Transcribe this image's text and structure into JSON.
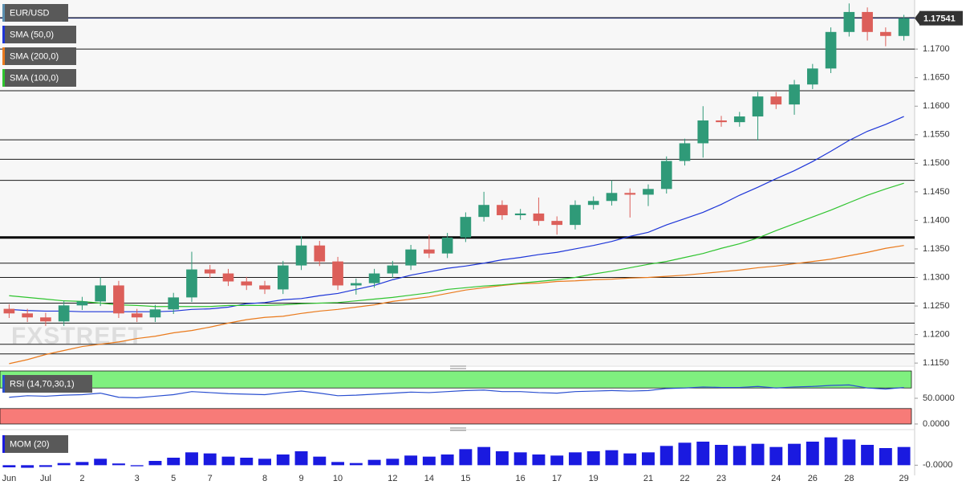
{
  "chart_data": {
    "type": "candlestick",
    "title": "EUR/USD",
    "watermark": "FXSTREET",
    "categories": [
      "Jun",
      null,
      "Jul",
      null,
      "2",
      null,
      null,
      "3",
      null,
      "5",
      null,
      "7",
      null,
      null,
      "8",
      null,
      "9",
      null,
      "10",
      null,
      null,
      "12",
      null,
      "14",
      null,
      "15",
      null,
      null,
      "16",
      null,
      "17",
      null,
      "19",
      null,
      null,
      "21",
      null,
      "22",
      null,
      "23",
      null,
      null,
      "24",
      null,
      "26",
      null,
      "28",
      null,
      null,
      "29"
    ],
    "open": [
      1.1245,
      1.1237,
      1.123,
      1.1223,
      1.1251,
      1.1258,
      1.1286,
      1.1237,
      1.123,
      1.1244,
      1.1265,
      1.1314,
      1.1307,
      1.1293,
      1.1286,
      1.1279,
      1.1321,
      1.1356,
      1.1328,
      1.1286,
      1.129,
      1.1307,
      1.1321,
      1.1349,
      1.1342,
      1.137,
      1.1406,
      1.1427,
      1.1409,
      1.1412,
      1.1399,
      1.1392,
      1.1427,
      1.1434,
      1.1448,
      1.1445,
      1.1455,
      1.1504,
      1.1535,
      1.1575,
      1.1572,
      1.1582,
      1.1617,
      1.1603,
      1.1638,
      1.1666,
      1.173,
      1.1765,
      1.173,
      1.1723
    ],
    "high": [
      1.1253,
      1.1245,
      1.1238,
      1.1259,
      1.1266,
      1.13,
      1.1294,
      1.1245,
      1.1252,
      1.1273,
      1.1345,
      1.1322,
      1.1315,
      1.1301,
      1.1294,
      1.1329,
      1.1372,
      1.1364,
      1.1336,
      1.1298,
      1.1315,
      1.1329,
      1.1357,
      1.1375,
      1.1378,
      1.1414,
      1.145,
      1.1435,
      1.142,
      1.144,
      1.1407,
      1.1435,
      1.1442,
      1.147,
      1.1456,
      1.1463,
      1.1512,
      1.1543,
      1.16,
      1.1583,
      1.159,
      1.1625,
      1.1625,
      1.1646,
      1.1674,
      1.1738,
      1.178,
      1.1773,
      1.1738,
      1.176
    ],
    "low": [
      1.1229,
      1.1222,
      1.1215,
      1.1215,
      1.1243,
      1.125,
      1.1229,
      1.1222,
      1.1222,
      1.1236,
      1.1257,
      1.1299,
      1.1285,
      1.1278,
      1.1271,
      1.1271,
      1.1313,
      1.132,
      1.1278,
      1.127,
      1.1282,
      1.1299,
      1.1313,
      1.1334,
      1.1334,
      1.1362,
      1.1398,
      1.1401,
      1.1401,
      1.1391,
      1.1375,
      1.1384,
      1.1419,
      1.1426,
      1.1405,
      1.1425,
      1.1447,
      1.1496,
      1.151,
      1.1564,
      1.1564,
      1.154,
      1.1595,
      1.1585,
      1.163,
      1.1658,
      1.1722,
      1.1715,
      1.1705,
      1.1715
    ],
    "close": [
      1.1237,
      1.123,
      1.1223,
      1.1251,
      1.1258,
      1.1286,
      1.1237,
      1.123,
      1.1244,
      1.1265,
      1.1314,
      1.1307,
      1.1293,
      1.1286,
      1.1279,
      1.1321,
      1.1356,
      1.1328,
      1.1286,
      1.129,
      1.1307,
      1.1321,
      1.1349,
      1.1342,
      1.137,
      1.1406,
      1.1427,
      1.1409,
      1.1412,
      1.1399,
      1.1392,
      1.1427,
      1.1434,
      1.1448,
      1.1445,
      1.1455,
      1.1504,
      1.1535,
      1.1575,
      1.1572,
      1.1582,
      1.1617,
      1.1603,
      1.1638,
      1.1666,
      1.173,
      1.1765,
      1.173,
      1.1723,
      1.17541
    ],
    "up_color": "#2f9a78",
    "down_color": "#dc5f5a",
    "title_color": "#5a8fb0",
    "series": [
      {
        "name": "SMA (50,0)",
        "color": "#1d35d8",
        "values": [
          1.1244,
          1.1242,
          1.1241,
          1.1241,
          1.124,
          1.124,
          1.124,
          1.124,
          1.124,
          1.1241,
          1.1244,
          1.1245,
          1.1248,
          1.1254,
          1.1256,
          1.1261,
          1.1263,
          1.1268,
          1.1272,
          1.1279,
          1.1286,
          1.1296,
          1.1304,
          1.131,
          1.1316,
          1.132,
          1.1325,
          1.1331,
          1.1335,
          1.134,
          1.1344,
          1.135,
          1.1356,
          1.1363,
          1.1372,
          1.1379,
          1.1392,
          1.1403,
          1.1414,
          1.1428,
          1.1444,
          1.1458,
          1.1473,
          1.1487,
          1.1503,
          1.1521,
          1.154,
          1.1556,
          1.1568,
          1.1582
        ]
      },
      {
        "name": "SMA (200,0)",
        "color": "#ea7a1c",
        "values": [
          1.1149,
          1.1156,
          1.1165,
          1.1172,
          1.1179,
          1.1183,
          1.1187,
          1.1193,
          1.1197,
          1.1203,
          1.1207,
          1.1213,
          1.122,
          1.1226,
          1.123,
          1.1232,
          1.1237,
          1.1241,
          1.1244,
          1.1248,
          1.1252,
          1.1258,
          1.1262,
          1.1266,
          1.1272,
          1.1278,
          1.1282,
          1.1286,
          1.1289,
          1.129,
          1.1293,
          1.1294,
          1.1296,
          1.1297,
          1.1299,
          1.13,
          1.1302,
          1.1304,
          1.1307,
          1.131,
          1.1313,
          1.1317,
          1.132,
          1.1324,
          1.1328,
          1.1332,
          1.1338,
          1.1344,
          1.1351,
          1.1356
        ]
      },
      {
        "name": "SMA (100,0)",
        "color": "#2fc42f",
        "values": [
          1.1268,
          1.1265,
          1.1262,
          1.1259,
          1.1258,
          1.1255,
          1.1252,
          1.1251,
          1.1249,
          1.1249,
          1.1249,
          1.1249,
          1.1251,
          1.1251,
          1.1251,
          1.1252,
          1.1254,
          1.1255,
          1.1256,
          1.1259,
          1.1262,
          1.1265,
          1.1269,
          1.1273,
          1.1279,
          1.1282,
          1.1285,
          1.1287,
          1.129,
          1.1293,
          1.1296,
          1.13,
          1.1306,
          1.1311,
          1.1317,
          1.1323,
          1.1328,
          1.1335,
          1.1342,
          1.1351,
          1.1359,
          1.1369,
          1.1382,
          1.1394,
          1.1406,
          1.1418,
          1.1431,
          1.1444,
          1.1455,
          1.1465
        ]
      }
    ],
    "ylim": [
      1.1146,
      1.1786
    ],
    "yticks": [
      {
        "value": 1.17,
        "label": "1.1700"
      },
      {
        "value": 1.165,
        "label": "1.1650"
      },
      {
        "value": 1.16,
        "label": "1.1600"
      },
      {
        "value": 1.155,
        "label": "1.1550"
      },
      {
        "value": 1.15,
        "label": "1.1500"
      },
      {
        "value": 1.145,
        "label": "1.1450"
      },
      {
        "value": 1.14,
        "label": "1.1400"
      },
      {
        "value": 1.135,
        "label": "1.1350"
      },
      {
        "value": 1.13,
        "label": "1.1300"
      },
      {
        "value": 1.125,
        "label": "1.1250"
      },
      {
        "value": 1.12,
        "label": "1.1200"
      },
      {
        "value": 1.115,
        "label": "1.1150"
      }
    ],
    "hlines": [
      1.1755,
      1.17,
      1.1627,
      1.1541,
      1.1507,
      1.147,
      1.1325,
      1.13,
      1.1255,
      1.122,
      1.1183,
      1.1166
    ],
    "bold_hlines": [
      1.137
    ],
    "panels": [
      {
        "type": "line",
        "name": "RSI (14,70,30,1)",
        "color": "#2a4fd0",
        "values": [
          52,
          55,
          54,
          56,
          57,
          60,
          52,
          51,
          54,
          57,
          63,
          61,
          59,
          58,
          57,
          61,
          64,
          60,
          55,
          56,
          58,
          60,
          62,
          61,
          63,
          65,
          66,
          63,
          63,
          61,
          60,
          63,
          64,
          65,
          64,
          65,
          69,
          70,
          72,
          71,
          71,
          73,
          70,
          72,
          73,
          75,
          76,
          70,
          68,
          71
        ],
        "levels": [
          70,
          30
        ],
        "upper_color": "#7ff07f",
        "lower_color": "#f77b78",
        "ylim": [
          0,
          100
        ],
        "yticks": [
          {
            "value": 50,
            "label": "50.0000"
          },
          {
            "value": 0,
            "label": "0.0000"
          }
        ]
      },
      {
        "type": "bar",
        "name": "MOM (20)",
        "color": "#1a1ae0",
        "values": [
          -0.001,
          -0.0012,
          -0.0008,
          0.001,
          0.0015,
          0.003,
          0.0008,
          -0.0005,
          0.002,
          0.0035,
          0.006,
          0.0055,
          0.004,
          0.0035,
          0.003,
          0.005,
          0.0065,
          0.004,
          0.0015,
          0.001,
          0.0025,
          0.003,
          0.0045,
          0.004,
          0.005,
          0.0075,
          0.0085,
          0.0065,
          0.006,
          0.005,
          0.0045,
          0.006,
          0.0065,
          0.007,
          0.0055,
          0.006,
          0.009,
          0.0105,
          0.011,
          0.0095,
          0.009,
          0.01,
          0.0085,
          0.01,
          0.011,
          0.013,
          0.012,
          0.0095,
          0.008,
          0.0085
        ],
        "ylim": [
          -0.004,
          0.014
        ],
        "yticks": [
          {
            "value": 0,
            "label": "-0.0000"
          }
        ]
      }
    ]
  }
}
